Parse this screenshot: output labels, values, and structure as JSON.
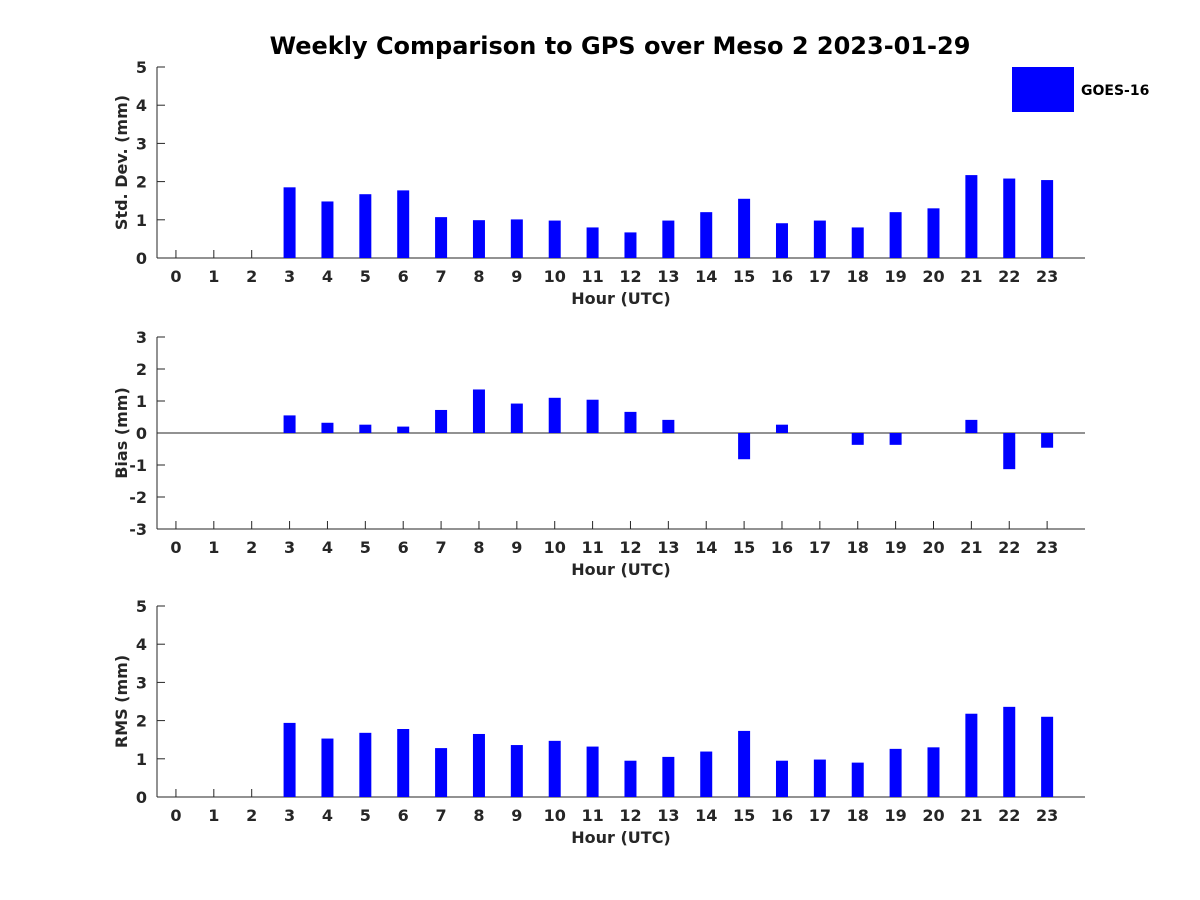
{
  "chart_data": {
    "type": "bar",
    "title": "Weekly Comparison to GPS over Meso 2 2023-01-29",
    "bar_color": "#0000ff",
    "legend": {
      "label": "GOES-16",
      "placement": "top-right"
    },
    "categories": [
      "0",
      "1",
      "2",
      "3",
      "4",
      "5",
      "6",
      "7",
      "8",
      "9",
      "10",
      "11",
      "12",
      "13",
      "14",
      "15",
      "16",
      "17",
      "18",
      "19",
      "20",
      "21",
      "22",
      "23"
    ],
    "panels": [
      {
        "id": "std",
        "ylabel": "Std. Dev. (mm)",
        "xlabel": "Hour (UTC)",
        "ylim": [
          0,
          5
        ],
        "yticks": [
          0,
          1,
          2,
          3,
          4,
          5
        ],
        "values": [
          null,
          null,
          null,
          1.85,
          1.48,
          1.67,
          1.77,
          1.07,
          0.99,
          1.01,
          0.98,
          0.8,
          0.67,
          0.98,
          1.2,
          1.55,
          0.91,
          0.98,
          0.8,
          1.2,
          1.3,
          2.17,
          2.08,
          2.04
        ]
      },
      {
        "id": "bias",
        "ylabel": "Bias (mm)",
        "xlabel": "Hour (UTC)",
        "ylim": [
          -3,
          3
        ],
        "yticks": [
          -3,
          -2,
          -1,
          0,
          1,
          2,
          3
        ],
        "values": [
          null,
          null,
          null,
          0.55,
          0.32,
          0.26,
          0.2,
          0.72,
          1.36,
          0.92,
          1.1,
          1.04,
          0.66,
          0.41,
          null,
          -0.82,
          0.26,
          null,
          -0.37,
          -0.37,
          null,
          0.41,
          -1.13,
          -0.46
        ]
      },
      {
        "id": "rms",
        "ylabel": "RMS (mm)",
        "xlabel": "Hour (UTC)",
        "ylim": [
          0,
          5
        ],
        "yticks": [
          0,
          1,
          2,
          3,
          4,
          5
        ],
        "values": [
          null,
          null,
          null,
          1.94,
          1.53,
          1.68,
          1.78,
          1.28,
          1.65,
          1.36,
          1.47,
          1.32,
          0.95,
          1.05,
          1.19,
          1.73,
          0.95,
          0.98,
          0.9,
          1.26,
          1.3,
          2.18,
          2.36,
          2.1
        ]
      }
    ]
  }
}
